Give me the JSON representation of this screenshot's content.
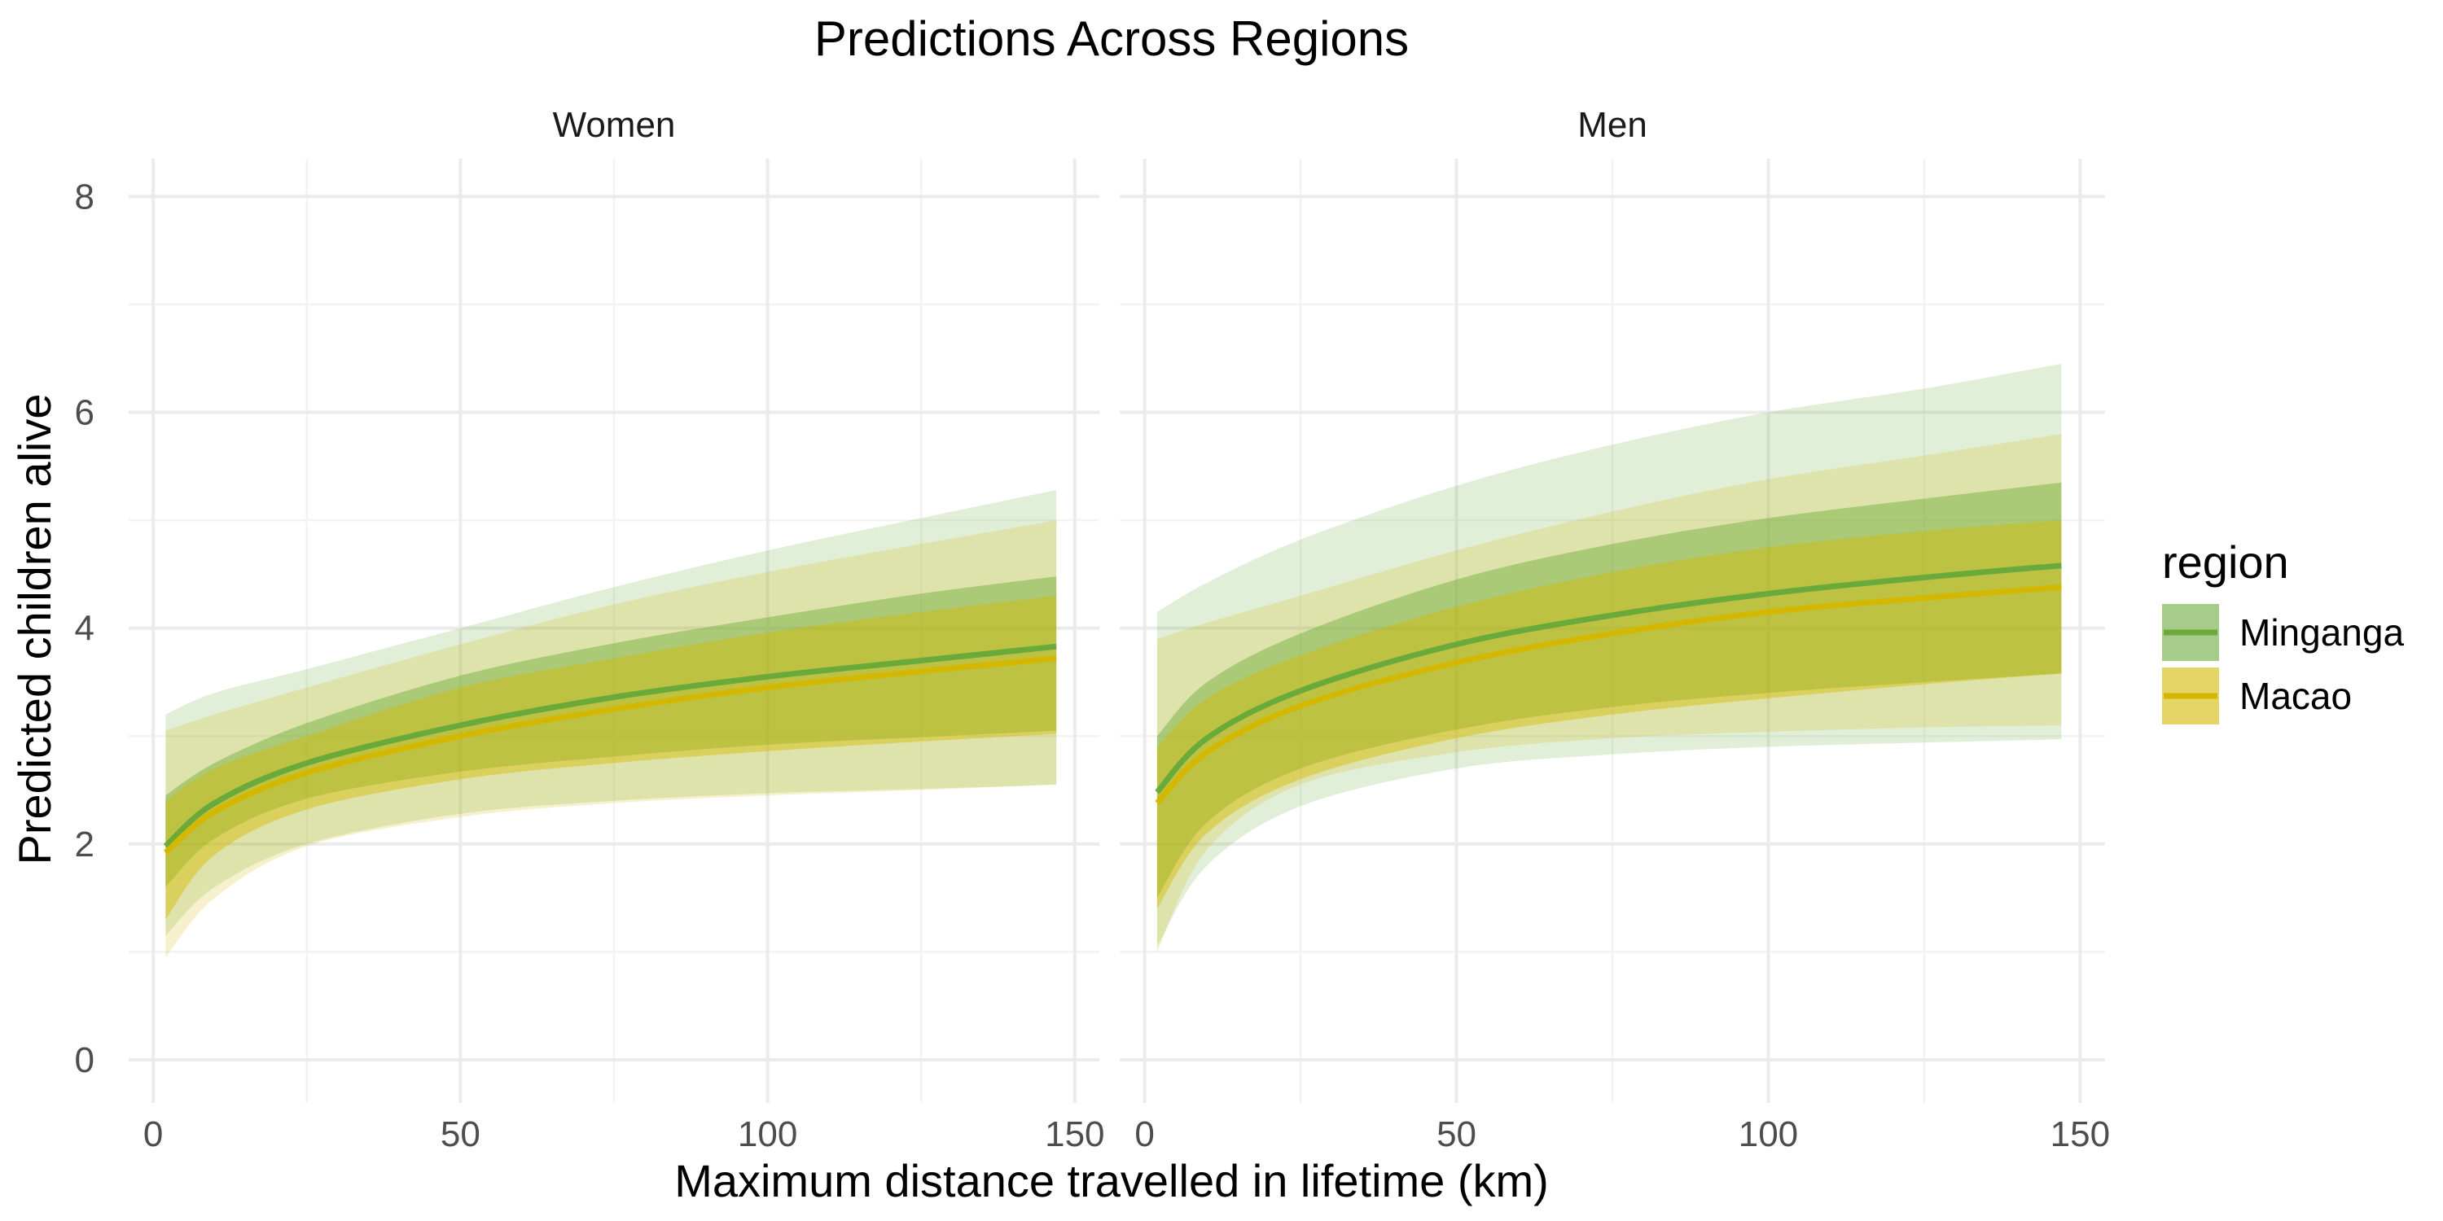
{
  "chart_data": {
    "type": "area",
    "title": "Predictions Across Regions",
    "xlabel": "Maximum distance travelled in lifetime (km)",
    "ylabel": "Predicted children alive",
    "xlim": [
      -4,
      154
    ],
    "ylim": [
      -0.4,
      8.35
    ],
    "x_ticks": [
      0,
      50,
      100,
      150
    ],
    "y_ticks": [
      0,
      2,
      4,
      6,
      8
    ],
    "grid": true,
    "legend": {
      "title": "region",
      "position": "right"
    },
    "x": [
      2,
      10,
      25,
      50,
      75,
      100,
      125,
      147
    ],
    "panels": [
      {
        "label": "Women",
        "series": [
          {
            "name": "Minganga",
            "color": "#6aaa3a",
            "mean": [
              1.98,
              2.38,
              2.75,
              3.1,
              3.36,
              3.55,
              3.7,
              3.83
            ],
            "inner_lower": [
              1.6,
              2.05,
              2.42,
              2.67,
              2.81,
              2.92,
              2.99,
              3.05
            ],
            "inner_upper": [
              2.45,
              2.75,
              3.12,
              3.56,
              3.86,
              4.1,
              4.32,
              4.48
            ],
            "outer_lower": [
              1.15,
              1.6,
              2.0,
              2.28,
              2.4,
              2.47,
              2.51,
              2.55
            ],
            "outer_upper": [
              3.2,
              3.4,
              3.62,
              4.0,
              4.38,
              4.72,
              5.02,
              5.28
            ]
          },
          {
            "name": "Macao",
            "color": "#d4b800",
            "mean": [
              1.92,
              2.3,
              2.66,
              3.0,
              3.25,
              3.45,
              3.6,
              3.72
            ],
            "inner_lower": [
              1.3,
              1.9,
              2.32,
              2.6,
              2.75,
              2.86,
              2.95,
              3.02
            ],
            "inner_upper": [
              2.4,
              2.7,
              3.0,
              3.45,
              3.72,
              3.96,
              4.15,
              4.3
            ],
            "outer_lower": [
              0.95,
              1.5,
              1.98,
              2.25,
              2.38,
              2.45,
              2.5,
              2.55
            ],
            "outer_upper": [
              3.05,
              3.2,
              3.45,
              3.85,
              4.22,
              4.52,
              4.78,
              5.0
            ]
          }
        ]
      },
      {
        "label": "Men",
        "series": [
          {
            "name": "Minganga",
            "color": "#6aaa3a",
            "mean": [
              2.48,
              2.98,
              3.42,
              3.85,
              4.12,
              4.32,
              4.47,
              4.58
            ],
            "inner_lower": [
              1.5,
              2.2,
              2.7,
              3.06,
              3.27,
              3.4,
              3.5,
              3.58
            ],
            "inner_upper": [
              3.0,
              3.5,
              3.95,
              4.45,
              4.78,
              5.02,
              5.2,
              5.35
            ],
            "outer_lower": [
              1.05,
              1.8,
              2.35,
              2.7,
              2.83,
              2.9,
              2.94,
              2.97
            ],
            "outer_upper": [
              4.15,
              4.42,
              4.82,
              5.32,
              5.7,
              6.0,
              6.22,
              6.45
            ]
          },
          {
            "name": "Macao",
            "color": "#d4b800",
            "mean": [
              2.38,
              2.85,
              3.28,
              3.68,
              3.95,
              4.15,
              4.28,
              4.38
            ],
            "inner_lower": [
              1.4,
              2.1,
              2.6,
              2.98,
              3.2,
              3.35,
              3.48,
              3.58
            ],
            "inner_upper": [
              2.9,
              3.35,
              3.75,
              4.2,
              4.52,
              4.75,
              4.9,
              5.0
            ],
            "outer_lower": [
              1.0,
              1.95,
              2.55,
              2.85,
              2.98,
              3.04,
              3.08,
              3.1
            ],
            "outer_upper": [
              3.9,
              4.05,
              4.3,
              4.72,
              5.08,
              5.38,
              5.6,
              5.8
            ]
          }
        ]
      }
    ]
  }
}
